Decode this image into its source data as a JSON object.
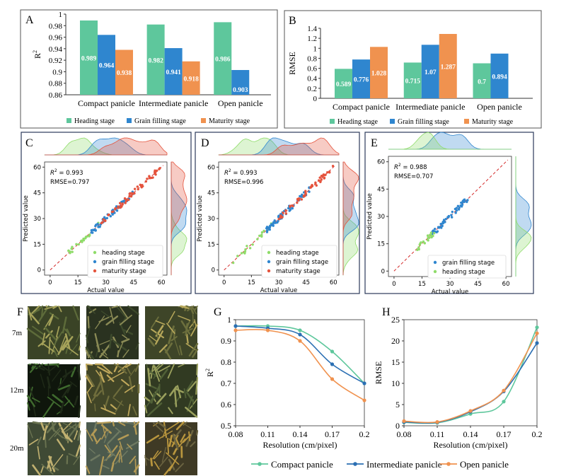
{
  "colors": {
    "heading": "#5ec79c",
    "grain": "#2f86cf",
    "maturity": "#f0924f",
    "compact": "#5ec79c",
    "intermediate": "#2b6fb3",
    "open": "#f0924f",
    "red_scatter": "#e5533c",
    "green_scatter": "#8fdc6a",
    "blue_scatter": "#2f86cf"
  },
  "panels": {
    "A": "A",
    "B": "B",
    "C": "C",
    "D": "D",
    "E": "E",
    "F": "F",
    "G": "G",
    "H": "H"
  },
  "stages_legend": [
    "Heading stage",
    "Grain filling stage",
    "Maturity stage"
  ],
  "photo_rows": [
    "7m",
    "12m",
    "20m"
  ],
  "chart_data": [
    {
      "id": "A",
      "type": "bar",
      "title": "",
      "ylabel": "R²",
      "ylabel_base": "R",
      "ylabel_sup": "2",
      "categories": [
        "Compact panicle",
        "Intermediate panicle",
        "Open panicle"
      ],
      "ylim": [
        0.86,
        1.0
      ],
      "yticks": [
        "0.86",
        "0.88",
        "0.9",
        "0.92",
        "0.94",
        "0.96",
        "0.98",
        "1"
      ],
      "ytick_values": [
        0.86,
        0.88,
        0.9,
        0.92,
        0.94,
        0.96,
        0.98,
        1.0
      ],
      "series": [
        {
          "name": "Heading stage",
          "values": [
            0.989,
            0.982,
            0.986
          ],
          "labels": [
            "0.989",
            "0.982",
            "0.986"
          ]
        },
        {
          "name": "Grain filling stage",
          "values": [
            0.964,
            0.941,
            0.903
          ],
          "labels": [
            "0.964",
            "0.941",
            "0.903"
          ]
        },
        {
          "name": "Maturity stage",
          "values": [
            0.938,
            0.918,
            null
          ],
          "labels": [
            "0.938",
            "0.918",
            ""
          ]
        }
      ]
    },
    {
      "id": "B",
      "type": "bar",
      "title": "",
      "ylabel": "RMSE",
      "categories": [
        "Compact panicle",
        "Intermediate panicle",
        "Open panicle"
      ],
      "ylim": [
        0,
        1.4
      ],
      "yticks": [
        "0",
        "0.2",
        "0.4",
        "0.6",
        "0.8",
        "1",
        "1.2",
        "1.4"
      ],
      "ytick_values": [
        0,
        0.2,
        0.4,
        0.6,
        0.8,
        1.0,
        1.2,
        1.4
      ],
      "series": [
        {
          "name": "Heading stage",
          "values": [
            0.589,
            0.715,
            0.7
          ],
          "labels": [
            "0.589",
            "0.715",
            "0.7"
          ]
        },
        {
          "name": "Grain filling stage",
          "values": [
            0.776,
            1.07,
            0.894
          ],
          "labels": [
            "0.776",
            "1.07",
            "0.894"
          ]
        },
        {
          "name": "Maturity stage",
          "values": [
            1.028,
            1.287,
            null
          ],
          "labels": [
            "1.028",
            "1.287",
            ""
          ]
        }
      ]
    },
    {
      "id": "C",
      "type": "scatter",
      "xlabel": "Actual value",
      "ylabel": "Predicted value",
      "r2_label": "R",
      "r2_value": " = 0.993",
      "rmse": "RMSE=0.797",
      "xlim": [
        -3,
        63
      ],
      "ylim": [
        -3,
        63
      ],
      "xticks": [
        "0",
        "15",
        "30",
        "45",
        "60"
      ],
      "yticks": [
        "0",
        "15",
        "30",
        "45",
        "60"
      ],
      "tick_values": [
        0,
        15,
        30,
        45,
        60
      ],
      "series": [
        {
          "name": "heading stage",
          "range": [
            8,
            27
          ],
          "n": 22
        },
        {
          "name": "grain filling stage",
          "range": [
            22,
            46
          ],
          "n": 60
        },
        {
          "name": "maturity stage",
          "range": [
            26,
            60
          ],
          "n": 55
        }
      ]
    },
    {
      "id": "D",
      "type": "scatter",
      "xlabel": "Actual value",
      "ylabel": "Predicted value",
      "r2_label": "R",
      "r2_value": " = 0.993",
      "rmse": "RMSE=0.996",
      "xlim": [
        -3,
        63
      ],
      "ylim": [
        -3,
        63
      ],
      "xticks": [
        "0",
        "15",
        "30",
        "45",
        "60"
      ],
      "yticks": [
        "0",
        "15",
        "30",
        "45",
        "60"
      ],
      "tick_values": [
        0,
        15,
        30,
        45,
        60
      ],
      "series": [
        {
          "name": "heading stage",
          "range": [
            5,
            28
          ],
          "n": 22
        },
        {
          "name": "grain filling stage",
          "range": [
            22,
            47
          ],
          "n": 60
        },
        {
          "name": "maturity stage",
          "range": [
            30,
            60
          ],
          "n": 50
        }
      ]
    },
    {
      "id": "E",
      "type": "scatter",
      "xlabel": "Actual value",
      "ylabel": "Predicted value",
      "r2_label": "R",
      "r2_value": " = 0.988",
      "rmse": "RMSE=0.707",
      "xlim": [
        -3,
        63
      ],
      "ylim": [
        -3,
        63
      ],
      "xticks": [
        "0",
        "15",
        "30",
        "45",
        "60"
      ],
      "yticks": [
        "0",
        "15",
        "30",
        "45",
        "60"
      ],
      "tick_values": [
        0,
        15,
        30,
        45,
        60
      ],
      "series": [
        {
          "name": "grain filling stage",
          "range": [
            19,
            40
          ],
          "n": 50
        },
        {
          "name": "heading stage",
          "range": [
            12,
            22
          ],
          "n": 20
        }
      ]
    },
    {
      "id": "G",
      "type": "line",
      "xlabel": "Resolution (cm/pixel)",
      "ylabel": "R²",
      "ylabel_base": "R",
      "ylabel_sup": "2",
      "x": [
        0.08,
        0.11,
        0.14,
        0.17,
        0.2
      ],
      "xticks": [
        "0.08",
        "0.11",
        "0.14",
        "0.17",
        "0.2"
      ],
      "ylim": [
        0.5,
        1.0
      ],
      "yticks": [
        "0.5",
        "0.6",
        "0.7",
        "0.8",
        "0.9",
        "1"
      ],
      "ytick_values": [
        0.5,
        0.6,
        0.7,
        0.8,
        0.9,
        1.0
      ],
      "series": [
        {
          "name": "Compact panicle",
          "values": [
            0.97,
            0.97,
            0.95,
            0.85,
            0.7
          ]
        },
        {
          "name": "Intermediate panicle",
          "values": [
            0.97,
            0.96,
            0.93,
            0.79,
            0.7
          ]
        },
        {
          "name": "Open panicle",
          "values": [
            0.95,
            0.95,
            0.9,
            0.72,
            0.62
          ]
        }
      ]
    },
    {
      "id": "H",
      "type": "line",
      "xlabel": "Resolution (cm/pixel)",
      "ylabel": "RMSE",
      "x": [
        0.08,
        0.11,
        0.14,
        0.17,
        0.2
      ],
      "xticks": [
        "0.08",
        "0.11",
        "0.14",
        "0.17",
        "0.2"
      ],
      "ylim": [
        0,
        25
      ],
      "yticks": [
        "0",
        "5",
        "10",
        "15",
        "20",
        "25"
      ],
      "ytick_values": [
        0,
        5,
        10,
        15,
        20,
        25
      ],
      "series": [
        {
          "name": "Compact panicle",
          "values": [
            0.8,
            0.7,
            2.8,
            5.7,
            23.2
          ]
        },
        {
          "name": "Intermediate panicle",
          "values": [
            0.9,
            0.8,
            3.3,
            8.1,
            19.5
          ]
        },
        {
          "name": "Open panicle",
          "values": [
            1.1,
            0.9,
            3.5,
            8.3,
            21.8
          ]
        }
      ]
    }
  ],
  "line_legend": [
    "Compact panicle",
    "Intermediate panicle",
    "Open panicle"
  ]
}
